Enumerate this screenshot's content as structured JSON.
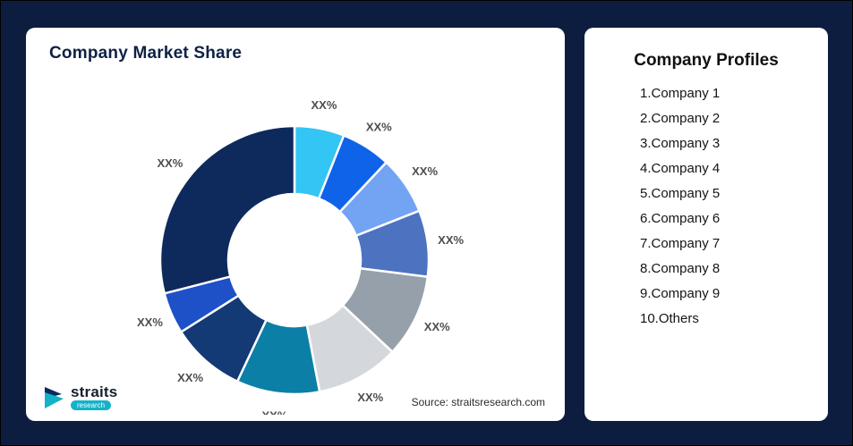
{
  "left_card": {
    "title": "Company Market Share",
    "source": "Source: straitsresearch.com"
  },
  "logo": {
    "name": "straits",
    "sub": "research",
    "accent": "#13b2c9"
  },
  "right_card": {
    "title": "Company Profiles",
    "items": [
      "1.Company 1",
      "2.Company 2",
      "3.Company 3",
      "4.Company 4",
      "5.Company 5",
      "6.Company 6",
      "7.Company 7",
      "8.Company 8",
      "9.Company 9",
      "10.Others"
    ]
  },
  "chart_data": {
    "type": "pie",
    "subtype": "donut",
    "title": "Company Market Share",
    "start_angle_deg": 0,
    "direction": "clockwise",
    "legend_position": "none",
    "series_names": [
      "Company 1",
      "Company 2",
      "Company 3",
      "Company 4",
      "Company 5",
      "Company 6",
      "Company 7",
      "Company 8",
      "Company 9",
      "Others"
    ],
    "labels": [
      "XX%",
      "XX%",
      "XX%",
      "XX%",
      "XX%",
      "XX%",
      "XX%",
      "XX%",
      "XX%",
      "XX%"
    ],
    "values": [
      6,
      6,
      7,
      8,
      10,
      10,
      10,
      9,
      5,
      29
    ],
    "values_note": "displayed values are masked as XX%; numeric values estimated from arc angles",
    "colors": [
      "#33c5f3",
      "#0f63e8",
      "#73a3f3",
      "#4d72c0",
      "#95a0ab",
      "#d4d8dd",
      "#0c7fa6",
      "#143a75",
      "#1e50c8",
      "#0e2a5c"
    ]
  }
}
